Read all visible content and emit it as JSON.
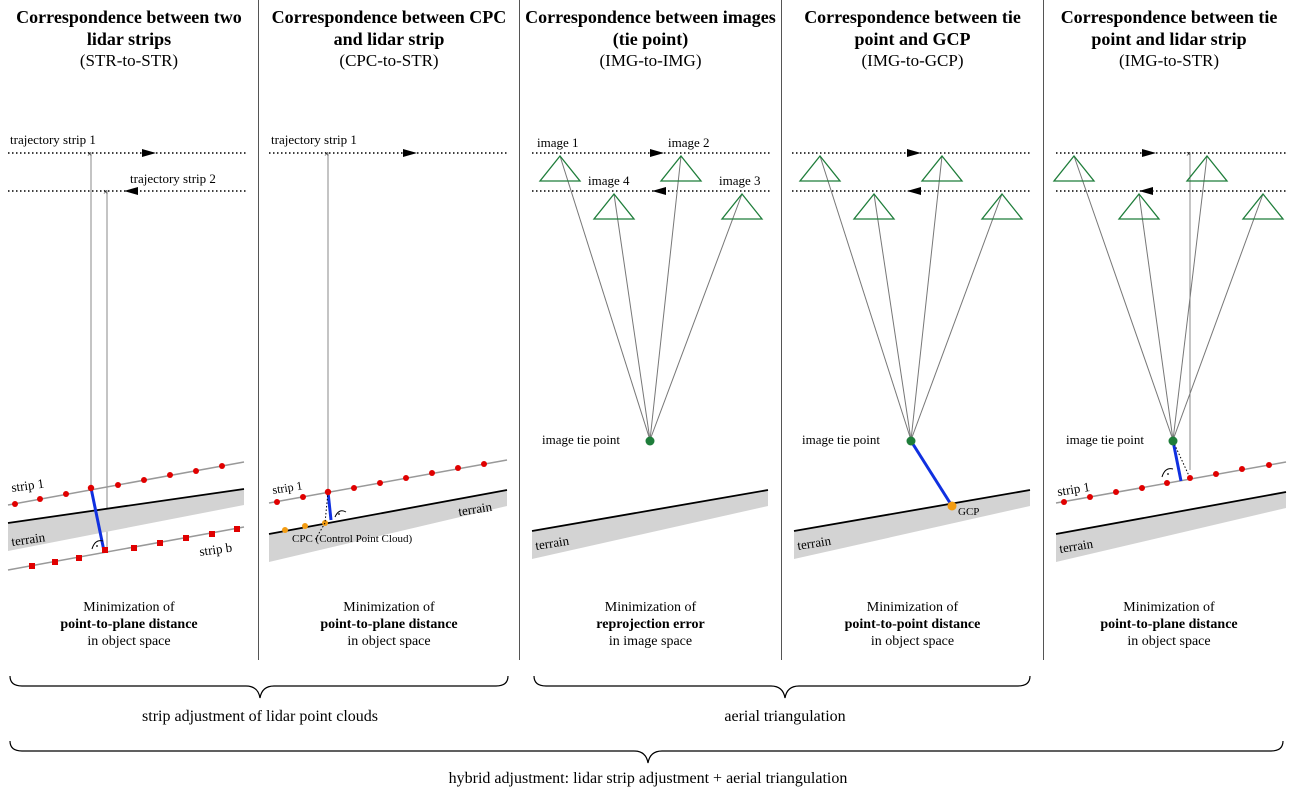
{
  "panels": [
    {
      "title": "Correspondence between two lidar strips",
      "subtitle": "(STR-to-STR)",
      "caption_line1": "Minimization of",
      "caption_bold": "point-to-plane distance",
      "caption_line3": "in object space",
      "labels": {
        "traj1": "trajectory strip 1",
        "traj2": "trajectory strip 2",
        "strip1": "strip 1",
        "terrain": "terrain",
        "stripb": "strip b"
      }
    },
    {
      "title": "Correspondence between CPC and lidar strip",
      "subtitle": "(CPC-to-STR)",
      "caption_line1": "Minimization of",
      "caption_bold": "point-to-plane distance",
      "caption_line3": "in object space",
      "labels": {
        "traj1": "trajectory strip 1",
        "strip1": "strip 1",
        "terrain": "terrain",
        "cpc": "CPC (Control Point Cloud)"
      }
    },
    {
      "title": "Correspondence between images (tie point)",
      "subtitle": "(IMG-to-IMG)",
      "caption_line1": "Minimization of",
      "caption_bold": "reprojection error",
      "caption_line3": "in image space",
      "labels": {
        "image1": "image 1",
        "image2": "image 2",
        "image3": "image 3",
        "image4": "image 4",
        "tiepoint": "image tie point",
        "terrain": "terrain"
      }
    },
    {
      "title": "Correspondence between tie point and GCP",
      "subtitle": "(IMG-to-GCP)",
      "caption_line1": "Minimization of",
      "caption_bold": "point-to-point distance",
      "caption_line3": "in object space",
      "labels": {
        "tiepoint": "image tie point",
        "gcp": "GCP",
        "terrain": "terrain"
      }
    },
    {
      "title": "Correspondence between tie point and lidar strip",
      "subtitle": "(IMG-to-STR)",
      "caption_line1": "Minimization of",
      "caption_bold": "point-to-plane distance",
      "caption_line3": "in object space",
      "labels": {
        "tiepoint": "image tie point",
        "strip1": "strip 1",
        "terrain": "terrain"
      }
    }
  ],
  "groups": {
    "strip_adjustment": "strip adjustment of lidar point clouds",
    "aerial_triangulation": "aerial triangulation",
    "hybrid": "hybrid adjustment: lidar strip adjustment + aerial triangulation"
  },
  "colors": {
    "lidar_point": "#e00000",
    "cpc_point": "#f39c12",
    "tie_point": "#1e7d3a",
    "camera": "#1e7d3a",
    "residual": "#1030e0",
    "terrain_fill": "#d3d3d3"
  }
}
